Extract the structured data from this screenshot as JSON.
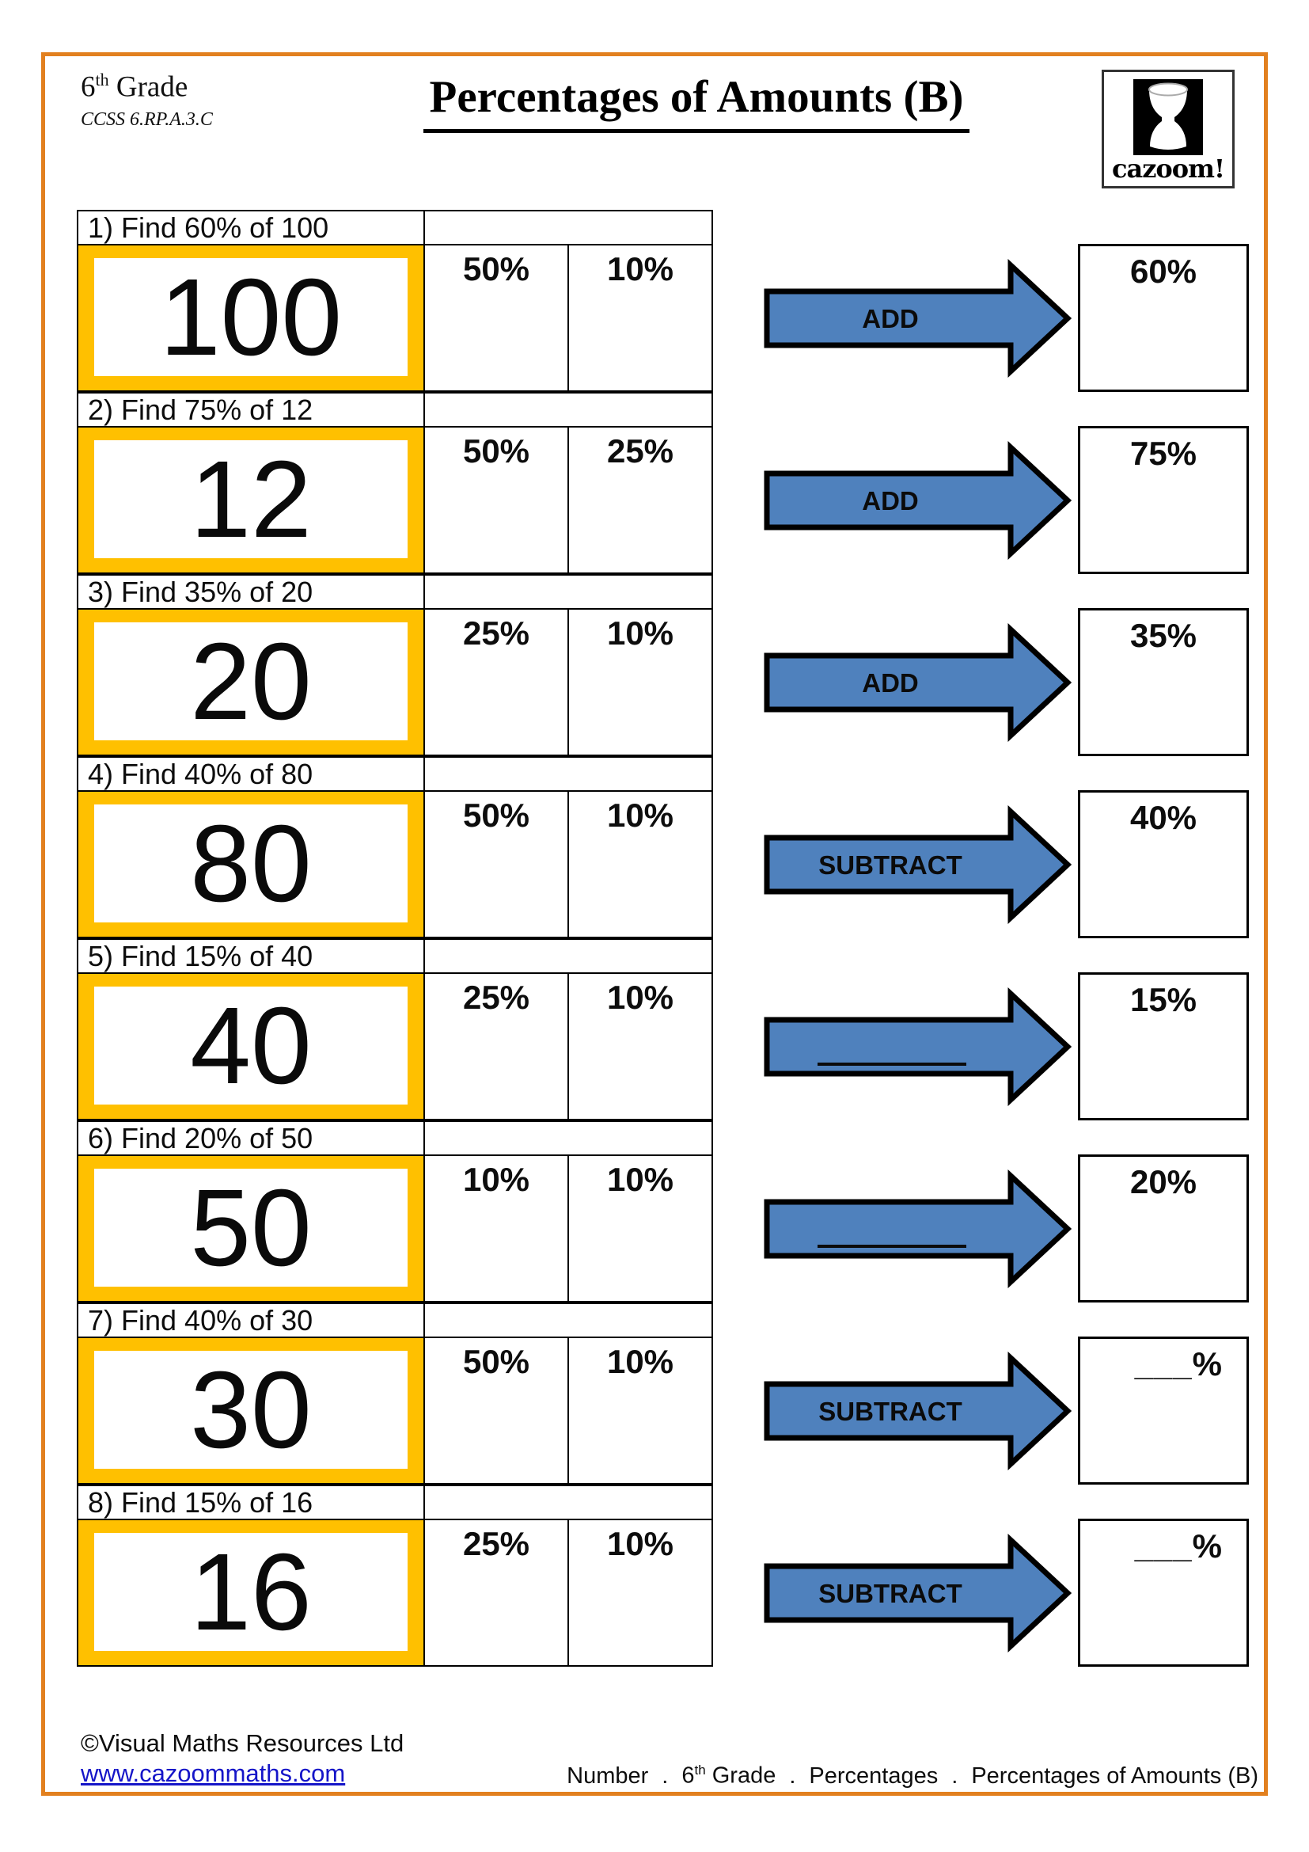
{
  "page": {
    "border_color": "#E2801F",
    "accent_yellow": "#FFC000",
    "arrow_blue": "#4F81BD"
  },
  "header": {
    "grade_base": "6",
    "grade_sup": "th",
    "grade_rest": " Grade",
    "ccss": "CCSS 6.RP.A.3.C",
    "title": "Percentages of Amounts (B)",
    "logo_text": "cazoom!",
    "logo_icon": "djembe-drum"
  },
  "problems": [
    {
      "label": "1) Find 60% of 100",
      "amount": "100",
      "percent_col_1": "50%",
      "percent_col_2": "10%",
      "operation": "ADD",
      "result_label": "60%"
    },
    {
      "label": "2) Find 75% of 12",
      "amount": "12",
      "percent_col_1": "50%",
      "percent_col_2": "25%",
      "operation": "ADD",
      "result_label": "75%"
    },
    {
      "label": "3) Find 35% of 20",
      "amount": "20",
      "percent_col_1": "25%",
      "percent_col_2": "10%",
      "operation": "ADD",
      "result_label": "35%"
    },
    {
      "label": "4) Find 40% of 80",
      "amount": "80",
      "percent_col_1": "50%",
      "percent_col_2": "10%",
      "operation": "SUBTRACT",
      "result_label": "40%"
    },
    {
      "label": "5) Find 15% of 40",
      "amount": "40",
      "percent_col_1": "25%",
      "percent_col_2": "10%",
      "operation": "",
      "result_label": "15%"
    },
    {
      "label": "6) Find 20% of 50",
      "amount": "50",
      "percent_col_1": "10%",
      "percent_col_2": "10%",
      "operation": "",
      "result_label": "20%"
    },
    {
      "label": "7) Find 40% of 30",
      "amount": "30",
      "percent_col_1": "50%",
      "percent_col_2": "10%",
      "operation": "SUBTRACT",
      "result_label": "___%"
    },
    {
      "label": "8) Find 15% of 16",
      "amount": "16",
      "percent_col_1": "25%",
      "percent_col_2": "10%",
      "operation": "SUBTRACT",
      "result_label": "___%"
    }
  ],
  "footer": {
    "copyright": "©Visual Maths Resources Ltd",
    "website": "www.cazoommaths.com",
    "breadcrumb": {
      "separator": ".",
      "items": [
        {
          "pre": "Number",
          "sup": "",
          "post": ""
        },
        {
          "pre": "6",
          "sup": "th",
          "post": " Grade"
        },
        {
          "pre": "Percentages",
          "sup": "",
          "post": ""
        },
        {
          "pre": "Percentages of Amounts (B)",
          "sup": "",
          "post": ""
        }
      ]
    }
  }
}
